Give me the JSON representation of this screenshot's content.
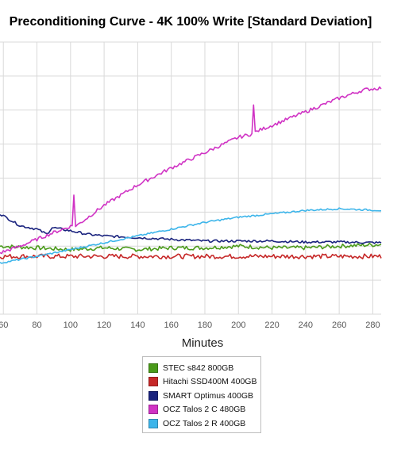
{
  "chart_data": {
    "type": "line",
    "title": "Preconditioning Curve - 4K 100% Write [Standard Deviation]",
    "xlabel": "Minutes",
    "ylabel": "",
    "x_ticks": [
      60,
      80,
      100,
      120,
      140,
      160,
      180,
      200,
      220,
      240,
      260,
      280
    ],
    "x_tick_labels": [
      "60",
      "80",
      "100",
      "120",
      "140",
      "160",
      "180",
      "200",
      "220",
      "240",
      "260",
      "280"
    ],
    "xlim": [
      58,
      285
    ],
    "ylim": [
      0,
      8
    ],
    "grid": true,
    "legend_position": "bottom",
    "series": [
      {
        "name": "STEC s842 800GB",
        "color": "#4a9a1a",
        "x": [
          58,
          80,
          100,
          120,
          140,
          160,
          180,
          200,
          220,
          240,
          260,
          285
        ],
        "y": [
          2.0,
          1.95,
          1.9,
          1.95,
          1.9,
          1.95,
          1.95,
          2.0,
          1.95,
          1.95,
          2.0,
          2.05
        ]
      },
      {
        "name": "Hitachi SSD400M 400GB",
        "color": "#c62828",
        "x": [
          58,
          80,
          100,
          120,
          140,
          160,
          180,
          200,
          220,
          240,
          260,
          285
        ],
        "y": [
          1.7,
          1.7,
          1.7,
          1.7,
          1.7,
          1.7,
          1.7,
          1.7,
          1.7,
          1.7,
          1.7,
          1.7
        ]
      },
      {
        "name": "SMART Optimus 400GB",
        "color": "#1a237e",
        "x": [
          58,
          70,
          80,
          86,
          89,
          100,
          110,
          120,
          140,
          160,
          180,
          200,
          220,
          240,
          260,
          285
        ],
        "y": [
          2.95,
          2.6,
          2.5,
          2.35,
          2.55,
          2.45,
          2.35,
          2.3,
          2.25,
          2.2,
          2.15,
          2.15,
          2.15,
          2.12,
          2.12,
          2.1
        ]
      },
      {
        "name": "OCZ Talos 2 C 480GB",
        "color": "#d033c4",
        "x": [
          58,
          70,
          80,
          90,
          101,
          102,
          103,
          105,
          120,
          140,
          160,
          180,
          200,
          208,
          209,
          210,
          212,
          220,
          240,
          260,
          275,
          285
        ],
        "y": [
          1.8,
          2.0,
          2.2,
          2.4,
          2.6,
          3.5,
          2.6,
          2.65,
          3.2,
          3.8,
          4.3,
          4.75,
          5.2,
          5.3,
          6.15,
          5.35,
          5.4,
          5.55,
          5.95,
          6.35,
          6.6,
          6.65
        ]
      },
      {
        "name": "OCZ Talos 2 R 400GB",
        "color": "#3db5ea",
        "x": [
          58,
          80,
          100,
          120,
          140,
          160,
          180,
          200,
          220,
          240,
          260,
          285
        ],
        "y": [
          1.5,
          1.7,
          1.9,
          2.1,
          2.3,
          2.5,
          2.7,
          2.85,
          2.95,
          3.05,
          3.1,
          3.05
        ]
      }
    ]
  }
}
